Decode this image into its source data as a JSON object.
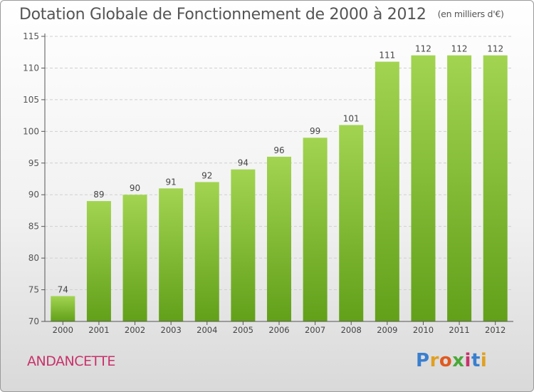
{
  "title": "Dotation Globale de Fonctionnement de 2000 à 2012",
  "unit_label": "(en milliers d'€)",
  "commune": "ANDANCETTE",
  "logo": {
    "text": "Proxiti",
    "letter_colors": [
      "#3a7fcf",
      "#e0a020",
      "#e05a20",
      "#4aa838",
      "#c8326a",
      "#3a7fcf",
      "#e0a020"
    ]
  },
  "colors": {
    "bar_light": "#a2d451",
    "bar_dark": "#62a01a",
    "axis": "#555555",
    "grid": "#cfcfcf"
  },
  "chart_data": {
    "type": "bar",
    "categories": [
      "2000",
      "2001",
      "2002",
      "2003",
      "2004",
      "2005",
      "2006",
      "2007",
      "2008",
      "2009",
      "2010",
      "2011",
      "2012"
    ],
    "values": [
      74,
      89,
      90,
      91,
      92,
      94,
      96,
      99,
      101,
      111,
      112,
      112,
      112
    ],
    "data_labels": [
      "74",
      "89",
      "90",
      "91",
      "92",
      "94",
      "96",
      "99",
      "101",
      "111",
      "112",
      "112",
      "112"
    ],
    "yticks": [
      "70",
      "75",
      "80",
      "85",
      "90",
      "95",
      "100",
      "105",
      "110",
      "115"
    ],
    "ylim": [
      70,
      115
    ],
    "grid": "horizontal dashed",
    "legend": "none"
  }
}
